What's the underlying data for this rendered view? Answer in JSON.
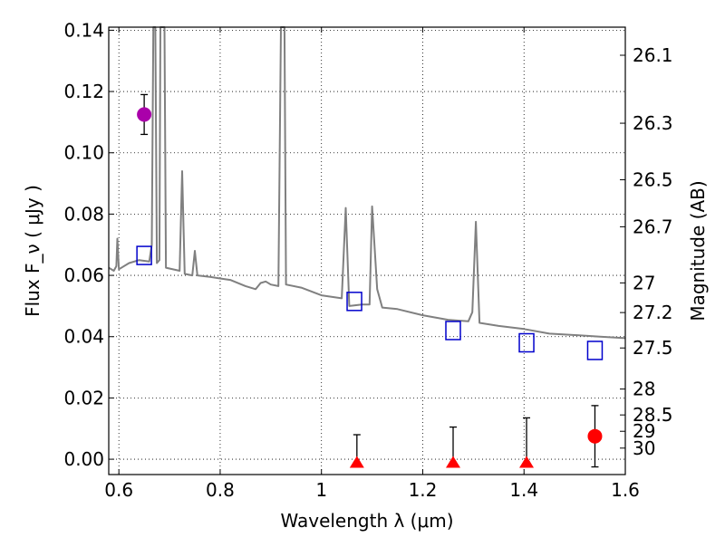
{
  "chart_data": {
    "type": "scatter",
    "xlabel": "Wavelength  λ (μm)",
    "ylabel_left": "Flux  F_ν  ( μJy )",
    "ylabel_right": "Magnitude (AB)",
    "xlim": [
      0.58,
      1.6
    ],
    "ylim": [
      -0.005,
      0.141
    ],
    "grid": true,
    "x_ticks": [
      {
        "value": 0.6,
        "label": "0.6"
      },
      {
        "value": 0.8,
        "label": "0.8"
      },
      {
        "value": 1.0,
        "label": "1"
      },
      {
        "value": 1.2,
        "label": "1.2"
      },
      {
        "value": 1.4,
        "label": "1.4"
      },
      {
        "value": 1.6,
        "label": "1.6"
      }
    ],
    "y_ticks": [
      {
        "value": 0.0,
        "label": "0.00"
      },
      {
        "value": 0.02,
        "label": "0.02"
      },
      {
        "value": 0.04,
        "label": "0.04"
      },
      {
        "value": 0.06,
        "label": "0.06"
      },
      {
        "value": 0.08,
        "label": "0.08"
      },
      {
        "value": 0.1,
        "label": "0.10"
      },
      {
        "value": 0.12,
        "label": "0.12"
      },
      {
        "value": 0.14,
        "label": "0.14"
      }
    ],
    "right_ticks": [
      {
        "mag": 26.1,
        "label": "26.1"
      },
      {
        "mag": 26.3,
        "label": "26.3"
      },
      {
        "mag": 26.5,
        "label": "26.5"
      },
      {
        "mag": 26.7,
        "label": "26.7"
      },
      {
        "mag": 27,
        "label": "27"
      },
      {
        "mag": 27.2,
        "label": "27.2"
      },
      {
        "mag": 27.5,
        "label": "27.5"
      },
      {
        "mag": 28,
        "label": "28"
      },
      {
        "mag": 28.5,
        "label": "28.5"
      },
      {
        "mag": 29,
        "label": "29"
      },
      {
        "mag": 30,
        "label": "30"
      }
    ],
    "series": [
      {
        "type": "line",
        "color": "#808080",
        "points": [
          [
            0.58,
            0.0625
          ],
          [
            0.59,
            0.0615
          ],
          [
            0.595,
            0.063
          ],
          [
            0.597,
            0.072
          ],
          [
            0.6,
            0.062
          ],
          [
            0.62,
            0.064
          ],
          [
            0.64,
            0.065
          ],
          [
            0.66,
            0.0645
          ],
          [
            0.665,
            0.07
          ],
          [
            0.668,
            0.141
          ],
          [
            0.672,
            0.141
          ],
          [
            0.675,
            0.064
          ],
          [
            0.68,
            0.065
          ],
          [
            0.682,
            0.141
          ],
          [
            0.69,
            0.141
          ],
          [
            0.693,
            0.0625
          ],
          [
            0.72,
            0.0615
          ],
          [
            0.725,
            0.094
          ],
          [
            0.73,
            0.0605
          ],
          [
            0.745,
            0.06
          ],
          [
            0.75,
            0.068
          ],
          [
            0.755,
            0.06
          ],
          [
            0.78,
            0.0595
          ],
          [
            0.8,
            0.059
          ],
          [
            0.82,
            0.0585
          ],
          [
            0.85,
            0.0565
          ],
          [
            0.87,
            0.0555
          ],
          [
            0.88,
            0.0575
          ],
          [
            0.89,
            0.058
          ],
          [
            0.9,
            0.057
          ],
          [
            0.915,
            0.0565
          ],
          [
            0.92,
            0.141
          ],
          [
            0.927,
            0.141
          ],
          [
            0.93,
            0.057
          ],
          [
            0.96,
            0.056
          ],
          [
            1.0,
            0.0535
          ],
          [
            1.04,
            0.0525
          ],
          [
            1.048,
            0.082
          ],
          [
            1.055,
            0.05
          ],
          [
            1.08,
            0.0505
          ],
          [
            1.095,
            0.0505
          ],
          [
            1.1,
            0.0825
          ],
          [
            1.11,
            0.0555
          ],
          [
            1.12,
            0.0495
          ],
          [
            1.15,
            0.049
          ],
          [
            1.2,
            0.047
          ],
          [
            1.25,
            0.0455
          ],
          [
            1.29,
            0.045
          ],
          [
            1.298,
            0.048
          ],
          [
            1.305,
            0.0775
          ],
          [
            1.312,
            0.0445
          ],
          [
            1.35,
            0.0435
          ],
          [
            1.4,
            0.0425
          ],
          [
            1.45,
            0.041
          ],
          [
            1.5,
            0.0405
          ],
          [
            1.55,
            0.04
          ],
          [
            1.6,
            0.0395
          ]
        ]
      },
      {
        "type": "squares",
        "color": "#0000cc",
        "points": [
          [
            0.65,
            0.0665
          ],
          [
            1.065,
            0.0515
          ],
          [
            1.26,
            0.042
          ],
          [
            1.405,
            0.038
          ],
          [
            1.54,
            0.0355
          ]
        ]
      },
      {
        "type": "circles",
        "color": "#aa00aa",
        "points": [
          {
            "x": 0.65,
            "y": 0.1125,
            "yerr_low": 0.106,
            "yerr_high": 0.119
          }
        ]
      },
      {
        "type": "circles",
        "color": "#ff0000",
        "points": [
          {
            "x": 1.54,
            "y": 0.0075,
            "yerr_low": -0.0025,
            "yerr_high": 0.0175
          }
        ]
      },
      {
        "type": "triangles",
        "color": "#ff0000",
        "points": [
          {
            "x": 1.07,
            "y": -0.001,
            "yerr_low": -0.001,
            "yerr_high": 0.008
          },
          {
            "x": 1.26,
            "y": -0.001,
            "yerr_low": -0.001,
            "yerr_high": 0.0105
          },
          {
            "x": 1.405,
            "y": -0.001,
            "yerr_low": -0.001,
            "yerr_high": 0.0135
          }
        ]
      }
    ]
  }
}
